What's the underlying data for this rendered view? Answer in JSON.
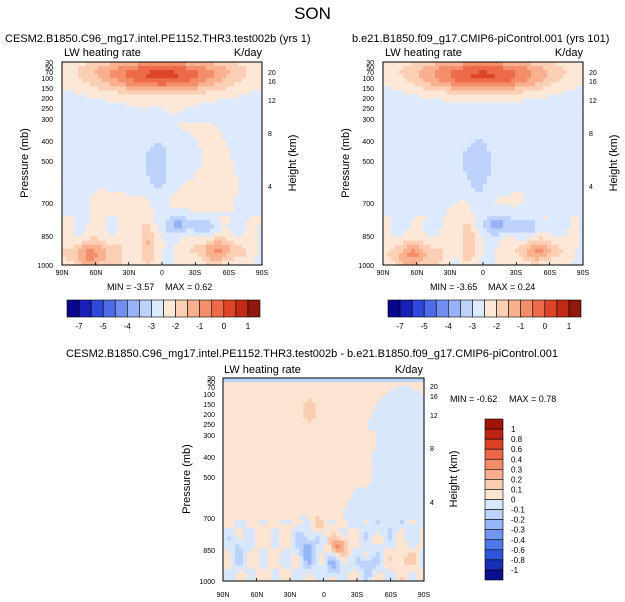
{
  "figure": {
    "season": "SON"
  },
  "palettes": {
    "top": [
      "#08068f",
      "#1a1fb9",
      "#2f47dc",
      "#4f6be7",
      "#6f8ef0",
      "#97b2f7",
      "#bcd2fb",
      "#dde9fc",
      "#fde7d6",
      "#fbcfb4",
      "#f8b08f",
      "#f48d69",
      "#ec6a47",
      "#dc4528",
      "#c22a16",
      "#8f1a0c"
    ],
    "diff": [
      "#0b0f8e",
      "#1a2fb8",
      "#2f55d8",
      "#4e78ea",
      "#7096f2",
      "#97b6f7",
      "#bcd2fb",
      "#d9e7fb",
      "#fbe4d2",
      "#f9cdb0",
      "#f6ae8c",
      "#f28b68",
      "#ec6746",
      "#dc4126",
      "#bf2313",
      "#a01409"
    ]
  },
  "chart_data": [
    {
      "type": "heatmap",
      "title": "CESM2.B1850.C96_mg17.intel.PE1152.THR3.test002b (yrs 1)",
      "left_subtitle": "LW heating rate",
      "right_subtitle": "K/day",
      "ylabel": "Pressure (mb)",
      "ylabel_right": "Height (km)",
      "x_ticks": [
        "90N",
        "60N",
        "30N",
        "0",
        "30S",
        "60S",
        "90S"
      ],
      "y_ticks": [
        "1000",
        "850",
        "700",
        "500",
        "400",
        "300",
        "250",
        "200",
        "150",
        "100",
        "70",
        "50",
        "30"
      ],
      "y_ticks_right": [
        "4",
        "8",
        "12",
        "16",
        "20"
      ],
      "min_label": "MIN = -3.57",
      "max_label": "MAX =  0.62",
      "colorbar_labels": [
        "-7",
        "-5",
        "-4",
        "-3",
        "-2",
        "-1",
        "0",
        "1"
      ],
      "palette": "top"
    },
    {
      "type": "heatmap",
      "title": "b.e21.B1850.f09_g17.CMIP6-piControl.001 (yrs 101)",
      "left_subtitle": "LW heating rate",
      "right_subtitle": "K/day",
      "ylabel": "Pressure (mb)",
      "ylabel_right": "Height (km)",
      "x_ticks": [
        "90N",
        "60N",
        "30N",
        "0",
        "30S",
        "60S",
        "90S"
      ],
      "y_ticks": [
        "1000",
        "850",
        "700",
        "500",
        "400",
        "300",
        "250",
        "200",
        "150",
        "100",
        "70",
        "50",
        "30"
      ],
      "y_ticks_right": [
        "4",
        "8",
        "12",
        "16",
        "20"
      ],
      "min_label": "MIN = -3.65",
      "max_label": "MAX =  0.24",
      "colorbar_labels": [
        "-7",
        "-5",
        "-4",
        "-3",
        "-2",
        "-1",
        "0",
        "1"
      ],
      "palette": "top"
    },
    {
      "type": "heatmap",
      "title": "CESM2.B1850.C96_mg17.intel.PE1152.THR3.test002b - b.e21.B1850.f09_g17.CMIP6-piControl.001",
      "left_subtitle": "LW heating rate",
      "right_subtitle": "K/day",
      "ylabel": "Pressure (mb)",
      "ylabel_right": "Height (km)",
      "x_ticks": [
        "90N",
        "60N",
        "30N",
        "0",
        "30S",
        "60S",
        "90S"
      ],
      "y_ticks": [
        "1000",
        "850",
        "700",
        "500",
        "400",
        "300",
        "250",
        "200",
        "150",
        "100",
        "70",
        "50",
        "30"
      ],
      "y_ticks_right": [
        "4",
        "8",
        "12",
        "16",
        "20"
      ],
      "min_label": "MIN = -0.62",
      "max_label": "MAX =  0.78",
      "colorbar_labels": [
        "1",
        "0.8",
        "0.6",
        "0.4",
        "0.3",
        "0.2",
        "0.1",
        "0",
        "-0.1",
        "-0.2",
        "-0.3",
        "-0.4",
        "-0.6",
        "-0.8",
        "-1"
      ],
      "palette": "diff"
    }
  ]
}
